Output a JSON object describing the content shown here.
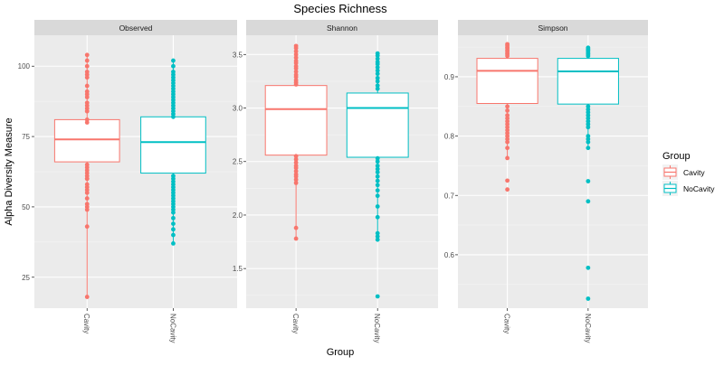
{
  "chart_data": {
    "type": "box",
    "title": "Species Richness",
    "xlabel": "Group",
    "ylabel": "Alpha Diversity Measure",
    "categories": [
      "Cavity",
      "NoCavity"
    ],
    "legend": {
      "title": "Group",
      "placement": "right",
      "entries": [
        {
          "label": "Cavity",
          "color": "#F8766D"
        },
        {
          "label": "NoCavity",
          "color": "#00BFC4"
        }
      ]
    },
    "grid": true,
    "panels": [
      {
        "name": "Observed",
        "ylim": [
          14,
          111
        ],
        "yticks": [
          25,
          50,
          75,
          100
        ],
        "groups": [
          {
            "category": "Cavity",
            "q1": 66,
            "median": 74,
            "q3": 81,
            "whisker_low": 18,
            "whisker_high": 104,
            "points": [
              104,
              102,
              100,
              98,
              97,
              96,
              93,
              91,
              90,
              89,
              87,
              86,
              85,
              84,
              84,
              81,
              80,
              65,
              64,
              63,
              62,
              61,
              60,
              60,
              58,
              57,
              56,
              55,
              53,
              51,
              50,
              49,
              43,
              18
            ]
          },
          {
            "category": "NoCavity",
            "q1": 62,
            "median": 73,
            "q3": 82,
            "whisker_low": 37,
            "whisker_high": 102,
            "points": [
              102,
              100,
              98,
              97,
              96,
              95,
              94,
              93,
              92,
              91,
              90,
              89,
              88,
              87,
              86,
              85,
              84,
              83,
              82,
              61,
              60,
              59,
              58,
              57,
              56,
              55,
              54,
              53,
              52,
              51,
              50,
              49,
              48,
              46,
              44,
              42,
              40,
              37
            ]
          }
        ]
      },
      {
        "name": "Shannon",
        "ylim": [
          1.13,
          3.68
        ],
        "yticks": [
          1.5,
          2.0,
          2.5,
          3.0,
          3.5
        ],
        "groups": [
          {
            "category": "Cavity",
            "q1": 2.56,
            "median": 2.99,
            "q3": 3.21,
            "whisker_low": 1.78,
            "whisker_high": 3.58,
            "points": [
              3.58,
              3.56,
              3.53,
              3.5,
              3.47,
              3.44,
              3.42,
              3.39,
              3.37,
              3.34,
              3.31,
              3.29,
              3.26,
              3.24,
              3.22,
              2.55,
              2.52,
              2.49,
              2.46,
              2.44,
              2.41,
              2.38,
              2.36,
              2.33,
              2.3,
              1.88,
              1.78
            ]
          },
          {
            "category": "NoCavity",
            "q1": 2.54,
            "median": 3.0,
            "q3": 3.14,
            "whisker_low": 1.77,
            "whisker_high": 3.51,
            "points": [
              3.51,
              3.49,
              3.46,
              3.43,
              3.41,
              3.38,
              3.35,
              3.32,
              3.28,
              3.25,
              3.21,
              3.18,
              2.53,
              2.5,
              2.46,
              2.43,
              2.4,
              2.36,
              2.32,
              2.28,
              2.23,
              2.18,
              2.08,
              1.98,
              1.83,
              1.8,
              1.77,
              1.24
            ]
          }
        ]
      },
      {
        "name": "Simpson",
        "ylim": [
          0.51,
          0.97
        ],
        "yticks": [
          0.6,
          0.7,
          0.8,
          0.9
        ],
        "groups": [
          {
            "category": "Cavity",
            "q1": 0.855,
            "median": 0.91,
            "q3": 0.931,
            "whisker_low": 0.763,
            "whisker_high": 0.955,
            "points": [
              0.955,
              0.953,
              0.95,
              0.948,
              0.945,
              0.943,
              0.94,
              0.938,
              0.935,
              0.85,
              0.843,
              0.835,
              0.83,
              0.825,
              0.82,
              0.815,
              0.81,
              0.805,
              0.8,
              0.795,
              0.79,
              0.78,
              0.763,
              0.725,
              0.71
            ]
          },
          {
            "category": "NoCavity",
            "q1": 0.854,
            "median": 0.909,
            "q3": 0.931,
            "whisker_low": 0.78,
            "whisker_high": 0.949,
            "points": [
              0.949,
              0.947,
              0.945,
              0.943,
              0.94,
              0.938,
              0.935,
              0.85,
              0.845,
              0.84,
              0.835,
              0.83,
              0.825,
              0.82,
              0.815,
              0.8,
              0.795,
              0.79,
              0.78,
              0.724,
              0.69,
              0.578,
              0.526
            ]
          }
        ]
      }
    ]
  }
}
